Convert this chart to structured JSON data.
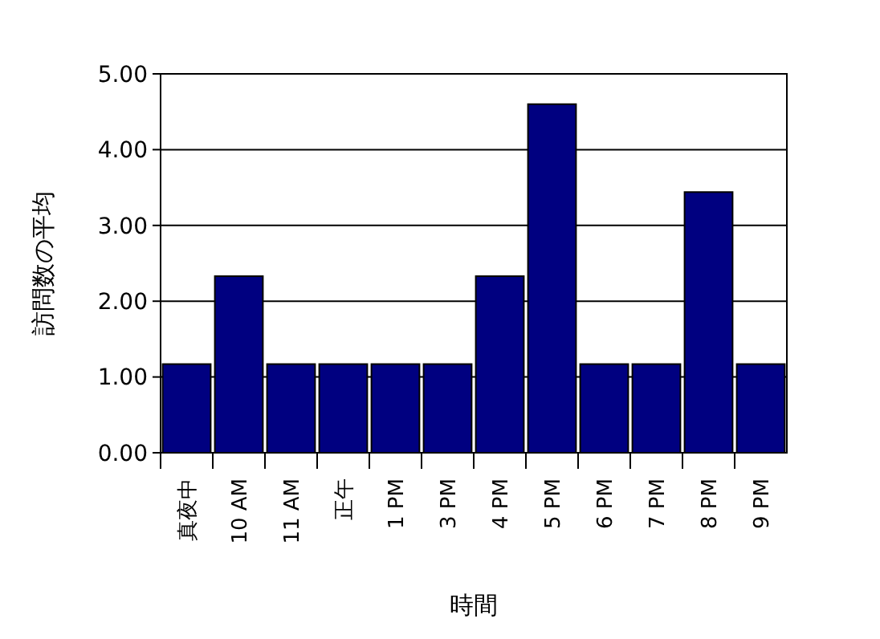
{
  "chart_data": {
    "type": "bar",
    "xlabel": "時間",
    "ylabel": "訪問数の平均",
    "categories": [
      "真夜中",
      "10 AM",
      "11 AM",
      "正午",
      "1 PM",
      "3 PM",
      "4 PM",
      "5 PM",
      "6 PM",
      "7 PM",
      "8 PM",
      "9 PM"
    ],
    "values": [
      1.17,
      2.33,
      1.17,
      1.17,
      1.17,
      1.17,
      2.33,
      4.6,
      1.17,
      1.17,
      3.44,
      1.17
    ],
    "color": "#000080",
    "ylim": [
      0,
      5
    ],
    "yticks": [
      {
        "value": 0,
        "label": "0.00"
      },
      {
        "value": 1,
        "label": "1.00"
      },
      {
        "value": 2,
        "label": "2.00"
      },
      {
        "value": 3,
        "label": "3.00"
      },
      {
        "value": 4,
        "label": "4.00"
      },
      {
        "value": 5,
        "label": "5.00"
      }
    ],
    "grid": "y"
  }
}
